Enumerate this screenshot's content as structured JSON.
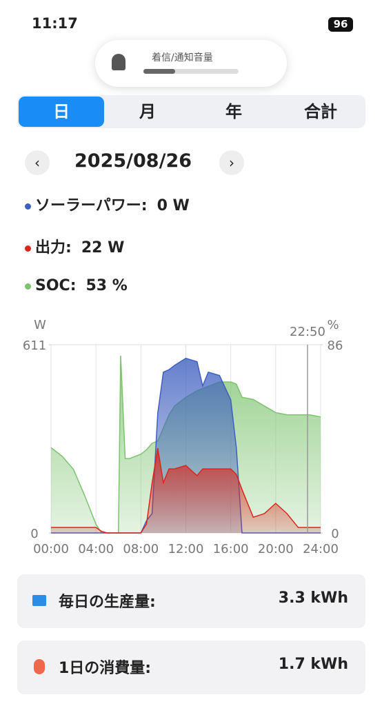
{
  "status_bar": {
    "time": "11:17",
    "battery": "96"
  },
  "volume_popup": {
    "label": "着信/通知音量"
  },
  "tabs": [
    "日",
    "月",
    "年",
    "合計"
  ],
  "date": "2025/08/26",
  "legend": [
    {
      "label": "ソーラーパワー:",
      "value": "0 W"
    },
    {
      "label": "出力:",
      "value": "22 W"
    },
    {
      "label": "SOC:",
      "value": "53 %"
    }
  ],
  "chart_data": {
    "type": "area",
    "ylabel": "W",
    "y2label": "%",
    "x": [
      0,
      1,
      2,
      3,
      4,
      4.5,
      5,
      6,
      6.2,
      6.6,
      7,
      8,
      8.5,
      9,
      9.5,
      10,
      10.5,
      11,
      12,
      13,
      13.5,
      14,
      15,
      16,
      16.5,
      17,
      18,
      19,
      20,
      21,
      22,
      23,
      24
    ],
    "xlim": [
      0,
      24
    ],
    "xticks": [
      {
        "value": 0,
        "label": "00:00"
      },
      {
        "value": 4,
        "label": "04:00"
      },
      {
        "value": 8,
        "label": "08:00"
      },
      {
        "value": 12,
        "label": "12:00"
      },
      {
        "value": 16,
        "label": "16:00"
      },
      {
        "value": 20,
        "label": "20:00"
      },
      {
        "value": 24,
        "label": "24:00"
      }
    ],
    "ylim": [
      0,
      611
    ],
    "yticks": [
      0,
      611
    ],
    "y2lim": [
      0,
      86
    ],
    "y2ticks": [
      0,
      86
    ],
    "grid": true,
    "cursor": {
      "value": 22.833,
      "label": "22:50"
    },
    "series": [
      {
        "name": "SOC",
        "color": "#7cc36e",
        "axis": "y2",
        "values": [
          39,
          35,
          29,
          17,
          4,
          0,
          0,
          0,
          81,
          34,
          34,
          36,
          38,
          41,
          42,
          48,
          54,
          58,
          62,
          65,
          66,
          67,
          69,
          69,
          68,
          62,
          61,
          58,
          55,
          54,
          54,
          54,
          53
        ]
      },
      {
        "name": "ソーラーパワー",
        "color": "#3e5fbf",
        "values": [
          0,
          0,
          0,
          0,
          0,
          0,
          0,
          0,
          0,
          0,
          0,
          0,
          40,
          63,
          388,
          522,
          530,
          544,
          567,
          556,
          477,
          522,
          511,
          432,
          275,
          0,
          0,
          0,
          0,
          0,
          0,
          0,
          0
        ]
      },
      {
        "name": "出力",
        "color": "#d9261c",
        "values": [
          18,
          18,
          18,
          18,
          18,
          5,
          0,
          0,
          0,
          0,
          0,
          0,
          29,
          163,
          275,
          163,
          208,
          208,
          219,
          186,
          208,
          208,
          208,
          208,
          190,
          141,
          51,
          63,
          96,
          63,
          18,
          18,
          18
        ]
      }
    ]
  },
  "summary": [
    {
      "label": "毎日の生産量:",
      "value": "3.3 kWh"
    },
    {
      "label": "1日の消費量:",
      "value": "1.7 kWh"
    }
  ]
}
